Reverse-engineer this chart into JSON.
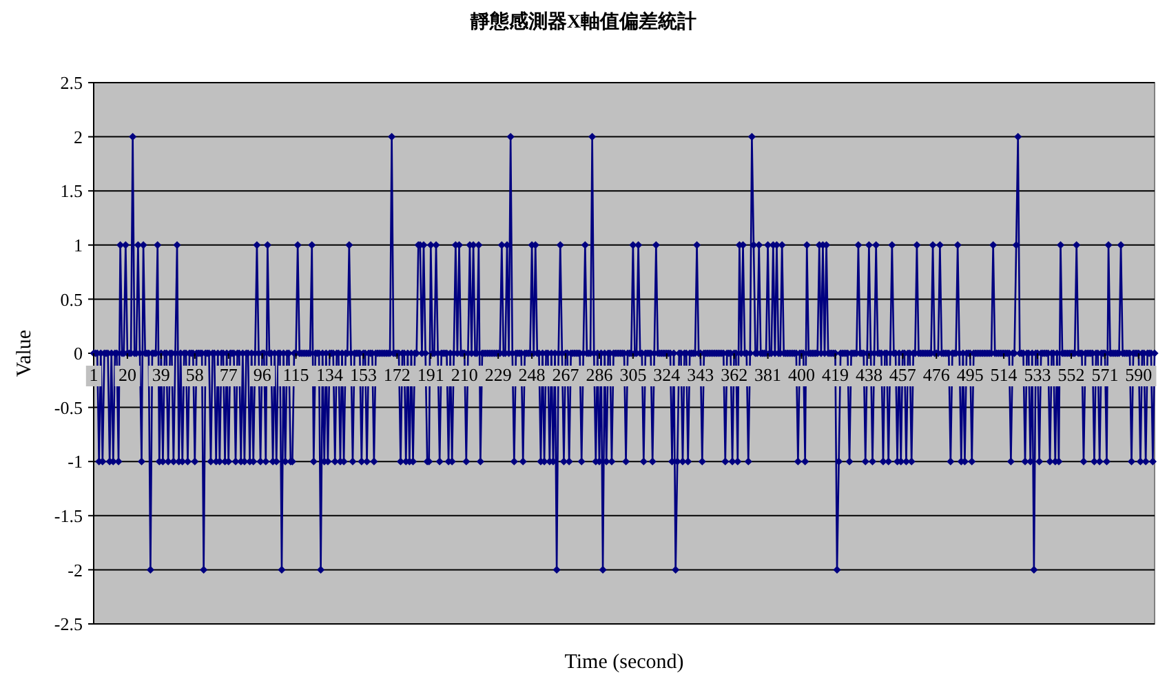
{
  "chart_data": {
    "type": "line",
    "title": "靜態感測器X軸值偏差統計",
    "xlabel": "Time (second)",
    "ylabel": "Value",
    "xlim": [
      1,
      599
    ],
    "xticks": [
      1,
      20,
      39,
      58,
      77,
      96,
      115,
      134,
      153,
      172,
      191,
      210,
      229,
      248,
      267,
      286,
      305,
      324,
      343,
      362,
      381,
      400,
      419,
      438,
      457,
      476,
      495,
      514,
      533,
      552,
      571,
      590
    ],
    "ylim": [
      -2.5,
      2.5
    ],
    "yticks": [
      -2.5,
      -2,
      -1.5,
      -1,
      -0.5,
      0,
      0.5,
      1,
      1.5,
      2,
      2.5
    ],
    "grid": "y",
    "marker": "diamond",
    "line_style": "solid",
    "series": [
      {
        "color": "#000080",
        "x": [
          1,
          2,
          3,
          4,
          5,
          6,
          7,
          8,
          9,
          10,
          11,
          12,
          13,
          14,
          15,
          16,
          17,
          18,
          19,
          20,
          21,
          22,
          23,
          24,
          25,
          26,
          27,
          28,
          29,
          30,
          31,
          32,
          33,
          34,
          35,
          36,
          37,
          38,
          39,
          40,
          41,
          42,
          43,
          44,
          45,
          46,
          47,
          48,
          49,
          50,
          51,
          52,
          53,
          54,
          55,
          56,
          57,
          58,
          59,
          60,
          61,
          62,
          63,
          64,
          65,
          66,
          67,
          68,
          69,
          70,
          71,
          72,
          73,
          74,
          75,
          76,
          77,
          78,
          79,
          80,
          81,
          82,
          83,
          84,
          85,
          86,
          87,
          88,
          89,
          90,
          91,
          92,
          93,
          94,
          95,
          96,
          97,
          98,
          99,
          100,
          101,
          102,
          103,
          104,
          105,
          106,
          107,
          108,
          109,
          110,
          111,
          112,
          113,
          114,
          115,
          116,
          117,
          118,
          119,
          120,
          121,
          122,
          123,
          124,
          125,
          126,
          127,
          128,
          129,
          130,
          131,
          132,
          133,
          134,
          135,
          136,
          137,
          138,
          139,
          140,
          141,
          142,
          143,
          144,
          145,
          146,
          147,
          148,
          149,
          150,
          151,
          152,
          153,
          154,
          155,
          156,
          157,
          158,
          159,
          160,
          161,
          162,
          163,
          164,
          165,
          166,
          167,
          168,
          169,
          170,
          171,
          172,
          173,
          174,
          175,
          176,
          177,
          178,
          179,
          180,
          181,
          182,
          183,
          184,
          185,
          186,
          187,
          188,
          189,
          190,
          191,
          192,
          193,
          194,
          195,
          196,
          197,
          198,
          199,
          200,
          201,
          202,
          203,
          204,
          205,
          206,
          207,
          208,
          209,
          210,
          211,
          212,
          213,
          214,
          215,
          216,
          217,
          218,
          219,
          220,
          221,
          222,
          223,
          224,
          225,
          226,
          227,
          228,
          229,
          230,
          231,
          232,
          233,
          234,
          235,
          236,
          237,
          238,
          239,
          240,
          241,
          242,
          243,
          244,
          245,
          246,
          247,
          248,
          249,
          250,
          251,
          252,
          253,
          254,
          255,
          256,
          257,
          258,
          259,
          260,
          261,
          262,
          263,
          264,
          265,
          266,
          267,
          268,
          269,
          270,
          271,
          272,
          273,
          274,
          275,
          276,
          277,
          278,
          279,
          280,
          281,
          282,
          283,
          284,
          285,
          286,
          287,
          288,
          289,
          290,
          291,
          292,
          293,
          294,
          295,
          296,
          297,
          298,
          299,
          300,
          301,
          302,
          303,
          304,
          305,
          306,
          307,
          308,
          309,
          310,
          311,
          312,
          313,
          314,
          315,
          316,
          317,
          318,
          319,
          320,
          321,
          322,
          323,
          324,
          325,
          326,
          327,
          328,
          329,
          330,
          331,
          332,
          333,
          334,
          335,
          336,
          337,
          338,
          339,
          340,
          341,
          342,
          343,
          344,
          345,
          346,
          347,
          348,
          349,
          350,
          351,
          352,
          353,
          354,
          355,
          356,
          357,
          358,
          359,
          360,
          361,
          362,
          363,
          364,
          365,
          366,
          367,
          368,
          369,
          370,
          371,
          372,
          373,
          374,
          375,
          376,
          377,
          378,
          379,
          380,
          381,
          382,
          383,
          384,
          385,
          386,
          387,
          388,
          389,
          390,
          391,
          392,
          393,
          394,
          395,
          396,
          397,
          398,
          399,
          400,
          401,
          402,
          403,
          404,
          405,
          406,
          407,
          408,
          409,
          410,
          411,
          412,
          413,
          414,
          415,
          416,
          417,
          418,
          419,
          420,
          421,
          422,
          423,
          424,
          425,
          426,
          427,
          428,
          429,
          430,
          431,
          432,
          433,
          434,
          435,
          436,
          437,
          438,
          439,
          440,
          441,
          442,
          443,
          444,
          445,
          446,
          447,
          448,
          449,
          450,
          451,
          452,
          453,
          454,
          455,
          456,
          457,
          458,
          459,
          460,
          461,
          462,
          463,
          464,
          465,
          466,
          467,
          468,
          469,
          470,
          471,
          472,
          473,
          474,
          475,
          476,
          477,
          478,
          479,
          480,
          481,
          482,
          483,
          484,
          485,
          486,
          487,
          488,
          489,
          490,
          491,
          492,
          493,
          494,
          495,
          496,
          497,
          498,
          499,
          500,
          501,
          502,
          503,
          504,
          505,
          506,
          507,
          508,
          509,
          510,
          511,
          512,
          513,
          514,
          515,
          516,
          517,
          518,
          519,
          520,
          521,
          522,
          523,
          524,
          525,
          526,
          527,
          528,
          529,
          530,
          531,
          532,
          533,
          534,
          535,
          536,
          537,
          538,
          539,
          540,
          541,
          542,
          543,
          544,
          545,
          546,
          547,
          548,
          549,
          550,
          551,
          552,
          553,
          554,
          555,
          556,
          557,
          558,
          559,
          560,
          561,
          562,
          563,
          564,
          565,
          566,
          567,
          568,
          569,
          570,
          571,
          572,
          573,
          574,
          575,
          576,
          577,
          578,
          579,
          580,
          581,
          582,
          583,
          584,
          585,
          586,
          587,
          588,
          589,
          590,
          591,
          592,
          593,
          594,
          595,
          596,
          597,
          598,
          599
        ],
        "values": [
          0,
          0,
          0,
          -1,
          0,
          -1,
          0,
          0,
          0,
          -1,
          0,
          -1,
          0,
          0,
          -1,
          1,
          0,
          0,
          1,
          0,
          0,
          0,
          2,
          0,
          0,
          1,
          0,
          -1,
          1,
          0,
          0,
          0,
          -2,
          0,
          0,
          0,
          1,
          -1,
          0,
          -1,
          0,
          0,
          -1,
          0,
          0,
          -1,
          0,
          1,
          -1,
          0,
          -1,
          0,
          0,
          -1,
          0,
          0,
          0,
          -1,
          0,
          0,
          0,
          0,
          -2,
          0,
          0,
          0,
          -1,
          0,
          0,
          -1,
          0,
          -1,
          0,
          0,
          -1,
          0,
          -1,
          0,
          0,
          0,
          -1,
          0,
          0,
          -1,
          0,
          -1,
          0,
          0,
          -1,
          0,
          -1,
          0,
          1,
          0,
          -1,
          0,
          0,
          -1,
          1,
          0,
          0,
          -1,
          0,
          -1,
          0,
          0,
          -2,
          0,
          -1,
          0,
          0,
          -1,
          -1,
          0,
          0,
          1,
          0,
          0,
          0,
          0,
          0,
          0,
          0,
          1,
          -1,
          0,
          0,
          0,
          -2,
          0,
          -1,
          0,
          -1,
          0,
          0,
          0,
          -1,
          0,
          0,
          -1,
          0,
          -1,
          0,
          0,
          1,
          0,
          -1,
          0,
          0,
          0,
          0,
          -1,
          0,
          0,
          -1,
          0,
          0,
          0,
          -1,
          0,
          0,
          0,
          0,
          0,
          0,
          0,
          0,
          0,
          2,
          0,
          0,
          0,
          0,
          -1,
          0,
          0,
          -1,
          0,
          -1,
          0,
          -1,
          0,
          0,
          1,
          1,
          0,
          1,
          0,
          -1,
          -1,
          1,
          0,
          0,
          1,
          0,
          -1,
          0,
          0,
          0,
          0,
          -1,
          0,
          -1,
          0,
          1,
          0,
          1,
          0,
          0,
          0,
          -1,
          0,
          1,
          0,
          1,
          0,
          0,
          1,
          -1,
          0,
          0,
          0,
          0,
          0,
          0,
          0,
          0,
          0,
          0,
          0,
          1,
          0,
          0,
          1,
          0,
          2,
          0,
          -1,
          0,
          0,
          0,
          0,
          -1,
          0,
          0,
          0,
          0,
          1,
          0,
          1,
          0,
          0,
          -1,
          0,
          -1,
          0,
          0,
          -1,
          0,
          -1,
          0,
          -2,
          0,
          1,
          0,
          -1,
          0,
          0,
          -1,
          0,
          0,
          0,
          0,
          0,
          0,
          -1,
          0,
          1,
          0,
          0,
          0,
          2,
          0,
          -1,
          0,
          -1,
          0,
          -2,
          0,
          -1,
          0,
          0,
          -1,
          0,
          0,
          0,
          0,
          0,
          0,
          0,
          -1,
          0,
          0,
          0,
          1,
          0,
          0,
          1,
          0,
          0,
          -1,
          0,
          0,
          0,
          0,
          -1,
          0,
          1,
          0,
          0,
          0,
          0,
          0,
          0,
          0,
          0,
          -1,
          0,
          -2,
          -1,
          0,
          0,
          -1,
          0,
          0,
          -1,
          0,
          0,
          0,
          0,
          1,
          0,
          0,
          -1,
          0,
          0,
          0,
          0,
          0,
          0,
          0,
          0,
          0,
          0,
          0,
          0,
          -1,
          0,
          0,
          0,
          -1,
          0,
          0,
          -1,
          1,
          0,
          1,
          0,
          0,
          -1,
          0,
          2,
          1,
          0,
          0,
          1,
          0,
          0,
          0,
          0,
          1,
          0,
          0,
          1,
          0,
          1,
          0,
          0,
          1,
          0,
          0,
          0,
          0,
          0,
          0,
          0,
          0,
          -1,
          0,
          0,
          0,
          -1,
          1,
          0,
          0,
          0,
          0,
          0,
          0,
          1,
          0,
          1,
          0,
          1,
          0,
          0,
          0,
          0,
          0,
          -2,
          -1,
          0,
          0,
          0,
          0,
          0,
          -1,
          0,
          0,
          0,
          0,
          1,
          0,
          0,
          0,
          -1,
          0,
          1,
          0,
          -1,
          0,
          1,
          0,
          0,
          0,
          -1,
          0,
          0,
          -1,
          0,
          1,
          0,
          0,
          -1,
          0,
          -1,
          0,
          0,
          -1,
          0,
          0,
          -1,
          0,
          0,
          1,
          0,
          0,
          0,
          0,
          0,
          0,
          0,
          0,
          1,
          0,
          0,
          0,
          1,
          0,
          0,
          0,
          0,
          0,
          -1,
          0,
          0,
          0,
          1,
          0,
          -1,
          0,
          -1,
          0,
          0,
          0,
          -1,
          0,
          0,
          0,
          0,
          0,
          0,
          0,
          0,
          0,
          0,
          0,
          1,
          0,
          0,
          0,
          0,
          0,
          0,
          0,
          0,
          0,
          -1,
          0,
          0,
          1,
          2,
          0,
          0,
          0,
          -1,
          0,
          0,
          -1,
          0,
          -2,
          0,
          0,
          -1,
          0,
          0,
          0,
          0,
          0,
          -1,
          0,
          0,
          -1,
          0,
          -1,
          1,
          0,
          0,
          0,
          0,
          0,
          0,
          0,
          0,
          1,
          0,
          0,
          0,
          -1,
          0,
          0,
          0,
          0,
          0,
          -1,
          0,
          0,
          -1,
          0,
          0,
          0,
          -1,
          1,
          0,
          0,
          0,
          0,
          0,
          0,
          1,
          0,
          0,
          0,
          0,
          0,
          -1,
          0,
          0,
          0,
          0,
          -1,
          0,
          0,
          -1,
          0,
          0,
          0,
          -1,
          0
        ]
      }
    ]
  }
}
